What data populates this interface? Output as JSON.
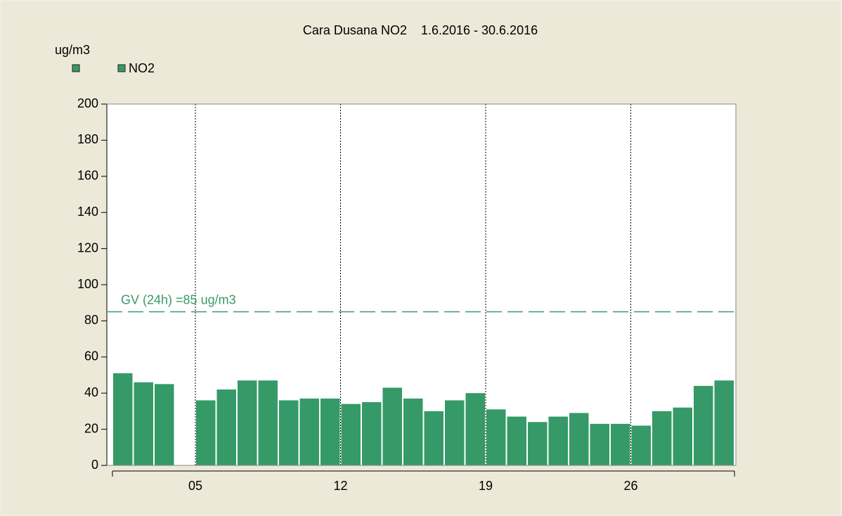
{
  "chart_data": {
    "type": "bar",
    "title": "Cara Dusana NO2    1.6.2016 - 30.6.2016",
    "y_label": "ug/m3",
    "categories": [
      null,
      null,
      null,
      null,
      "05",
      null,
      null,
      null,
      null,
      null,
      null,
      "12",
      null,
      null,
      null,
      null,
      null,
      null,
      "19",
      null,
      null,
      null,
      null,
      null,
      null,
      "26",
      null,
      null,
      null,
      null
    ],
    "series": [
      {
        "name": "NO2",
        "color": "#359a67",
        "values": [
          51,
          46,
          45,
          null,
          36,
          42,
          47,
          47,
          36,
          37,
          37,
          34,
          35,
          43,
          37,
          30,
          36,
          40,
          31,
          27,
          24,
          27,
          29,
          23,
          23,
          22,
          30,
          32,
          44,
          47
        ]
      }
    ],
    "ylim": [
      0,
      200
    ],
    "yticks": [
      0,
      20,
      40,
      60,
      80,
      100,
      120,
      140,
      160,
      180,
      200
    ],
    "threshold": {
      "value": 85,
      "label": "GV (24h) =85 ug/m3",
      "color": "#3a9a6a"
    },
    "xgrid": true
  }
}
